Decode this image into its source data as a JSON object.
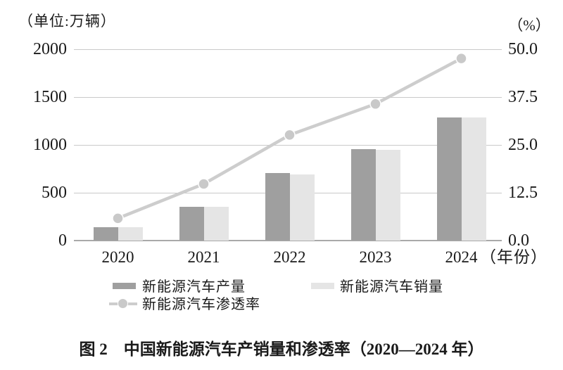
{
  "figure": {
    "unit_label": "（单位:万辆）",
    "percent_label": "（%）",
    "year_axis_label": "（年份）",
    "caption": "图 2　中国新能源汽车产销量和渗透率（2020—2024 年）"
  },
  "axes": {
    "left_ticks": [
      "2000",
      "1500",
      "1000",
      "500",
      "0"
    ],
    "right_ticks": [
      "50.0",
      "37.5",
      "25.0",
      "12.5",
      "0.0"
    ]
  },
  "legend": {
    "production_label": "新能源汽车产量",
    "sales_label": "新能源汽车销量",
    "penetration_label": "新能源汽车渗透率"
  },
  "colors": {
    "bar_production": "#9f9f9f",
    "bar_sales": "#e5e5e5",
    "line": "#cdcdcd",
    "marker": "#c9c9c9",
    "marker_border": "#ffffff",
    "gridline": "#c9c9c9",
    "baseline": "#a9a9a9",
    "text": "#1a1a1a"
  },
  "chart_data": {
    "type": "bar",
    "subtype": "grouped-bar-with-line-combo",
    "title": "中国新能源汽车产销量和渗透率（2020—2024 年）",
    "categories": [
      "2020",
      "2021",
      "2022",
      "2023",
      "2024"
    ],
    "series": [
      {
        "name": "新能源汽车产量",
        "chart": "bar",
        "axis": "left",
        "unit": "万辆",
        "values": [
          137,
          355,
          706,
          959,
          1289
        ]
      },
      {
        "name": "新能源汽车销量",
        "chart": "bar",
        "axis": "left",
        "unit": "万辆",
        "values": [
          137,
          352,
          689,
          950,
          1287
        ]
      },
      {
        "name": "新能源汽车渗透率",
        "chart": "line",
        "axis": "right",
        "unit": "%",
        "values": [
          5.8,
          14.8,
          27.6,
          35.7,
          47.6
        ]
      }
    ],
    "left_axis": {
      "label": "单位:万辆",
      "range": [
        0,
        2000
      ],
      "ticks": [
        0,
        500,
        1000,
        1500,
        2000
      ]
    },
    "right_axis": {
      "label": "%",
      "range": [
        0,
        50
      ],
      "ticks": [
        0,
        12.5,
        25.0,
        37.5,
        50.0
      ]
    },
    "x_axis": {
      "label": "年份"
    },
    "grid": true,
    "legend_position": "bottom"
  }
}
